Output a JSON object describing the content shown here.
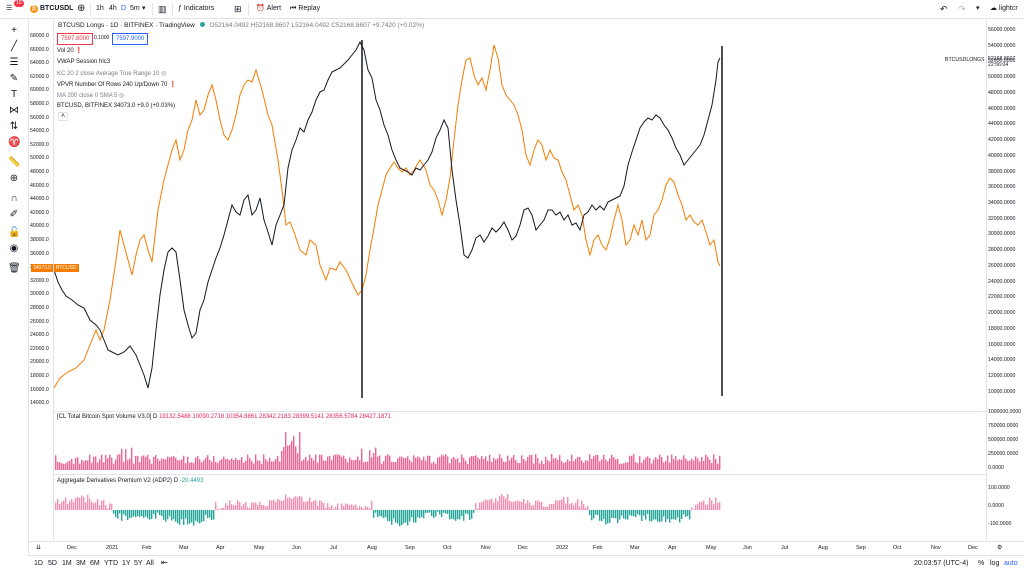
{
  "topbar": {
    "notifications": "10",
    "symbol": "BTCUSDL",
    "intervals": [
      "1h",
      "4h",
      "D",
      "5m"
    ],
    "indicators_label": "Indicators",
    "alert_label": "Alert",
    "replay_label": "Replay",
    "account_label": "lightcr"
  },
  "legend": {
    "main_title": "BTCUSD Longs · 1D · BITFINEX · TradingView",
    "ohlc": "O52164.0492 H52168.8607 L52164.0492 C52168.8607 +9.7420 (+0.02%)",
    "sell_price": "7597.8000",
    "spread": "0.1000",
    "buy_price": "7597.9000",
    "indicators": [
      "Vol 20",
      "VWAP Session hlc3",
      "KC 20 2 close Average True Range 10",
      "VPVR Number Of Rows 240 Up/Down 70",
      "MA 200 close 0 SMA 5",
      "BTCUSD, BITFINEX  34073.0  +9.0 (+0.03%)"
    ],
    "btc_value": "34073.0",
    "btc_change": "+9.0 (+0.03%)"
  },
  "btc_tag": {
    "value": "34073.0",
    "label": "BTCUSD"
  },
  "longs_tag": {
    "symbol": "BTCUSDLONGS",
    "value": "52168.8607",
    "sub": "22:56:04"
  },
  "left_axis": {
    "ticks": [
      "68000.0",
      "66000.0",
      "64000.0",
      "62000.0",
      "60000.0",
      "58000.0",
      "56000.0",
      "54000.0",
      "52000.0",
      "50000.0",
      "48000.0",
      "46000.0",
      "44000.0",
      "42000.0",
      "40000.0",
      "38000.0",
      "36000.0",
      "34000.0",
      "32000.0",
      "30000.0",
      "28000.0",
      "26000.0",
      "24000.0",
      "22000.0",
      "20000.0",
      "18000.0",
      "16000.0",
      "14000.0"
    ]
  },
  "right_axis": {
    "ticks": [
      "56000.0000",
      "54000.0000",
      "52000.0000",
      "50000.0000",
      "48000.0000",
      "46000.0000",
      "44000.0000",
      "42000.0000",
      "40000.0000",
      "38000.0000",
      "36000.0000",
      "34000.0000",
      "32000.0000",
      "30000.0000",
      "28000.0000",
      "26000.0000",
      "24000.0000",
      "22000.0000",
      "20000.0000",
      "18000.0000",
      "16000.0000",
      "14000.0000",
      "12000.0000",
      "10000.0000"
    ],
    "vol_ticks": [
      "1000000.0000",
      "750000.0000",
      "500000.0000",
      "250000.0000",
      "0.0000"
    ],
    "prem_ticks": [
      "100.0000",
      "0.0000",
      "-100.0000"
    ]
  },
  "volume_pane": {
    "title": "[CL Total Bitcoin Spot Volume V3.0] D",
    "values": "19132.5488  10090.2718  10354.8861  28342.2183  28399.5141  28356.5784  28427.1871"
  },
  "premium_pane": {
    "title": "Aggregate Derivatives Premium V2 (ADP2) D",
    "value": "-20.4493"
  },
  "x_axis": {
    "ticks": [
      "Dec",
      "2021",
      "Feb",
      "Mar",
      "Apr",
      "May",
      "Jun",
      "Jul",
      "Aug",
      "Sep",
      "Oct",
      "Nov",
      "Dec",
      "2022",
      "Feb",
      "Mar",
      "Apr",
      "May",
      "Jun",
      "Jul",
      "Aug",
      "Sep",
      "Oct",
      "Nov",
      "Dec"
    ]
  },
  "bottombar": {
    "ranges": [
      "1D",
      "5D",
      "1M",
      "3M",
      "6M",
      "YTD",
      "1Y",
      "5Y",
      "All"
    ],
    "clock": "20:03:57 (UTC-4)",
    "percent": "%",
    "log": "log",
    "auto": "auto"
  },
  "colors": {
    "longs": "#131722",
    "btc": "#f57c00",
    "volume": "#f06292",
    "prem_pos": "#f48fb1",
    "prem_neg": "#26a69a"
  }
}
